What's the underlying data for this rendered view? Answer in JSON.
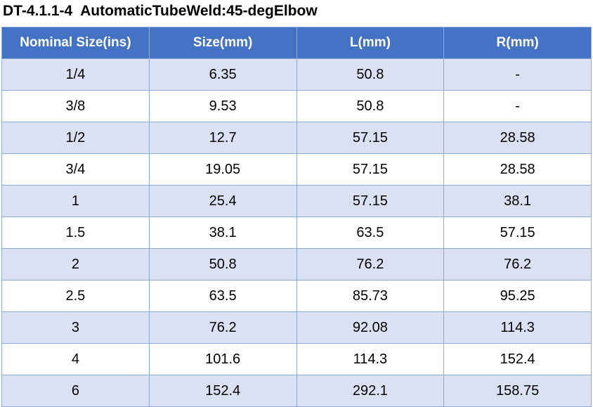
{
  "title": "DT-4.1.1-4  AutomaticTubeWeld:45-degElbow",
  "table": {
    "header": [
      "Nominal Size(ins)",
      "Size(mm)",
      "L(mm)",
      "R(mm)"
    ],
    "rows": [
      [
        "1/4",
        "6.35",
        "50.8",
        "-"
      ],
      [
        "3/8",
        "9.53",
        "50.8",
        "-"
      ],
      [
        "1/2",
        "12.7",
        "57.15",
        "28.58"
      ],
      [
        "3/4",
        "19.05",
        "57.15",
        "28.58"
      ],
      [
        "1",
        "25.4",
        "57.15",
        "38.1"
      ],
      [
        "1.5",
        "38.1",
        "63.5",
        "57.15"
      ],
      [
        "2",
        "50.8",
        "76.2",
        "76.2"
      ],
      [
        "2.5",
        "63.5",
        "85.73",
        "95.25"
      ],
      [
        "3",
        "76.2",
        "92.08",
        "114.3"
      ],
      [
        "4",
        "101.6",
        "114.3",
        "152.4"
      ],
      [
        "6",
        "152.4",
        "292.1",
        "158.75"
      ]
    ]
  }
}
